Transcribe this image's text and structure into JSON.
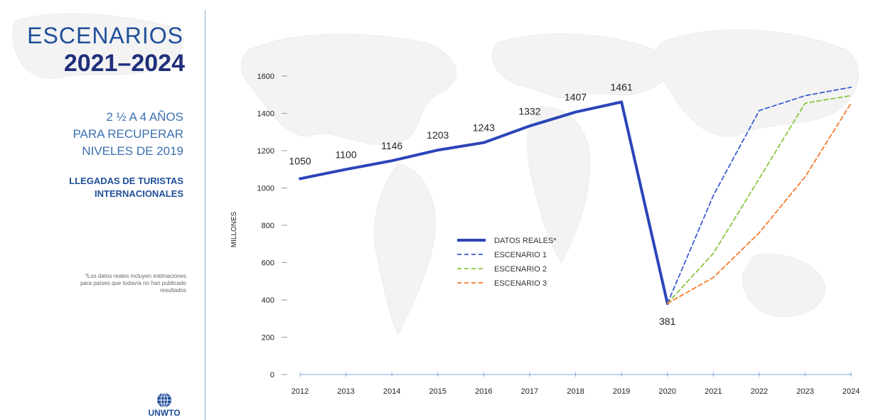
{
  "header": {
    "title_line1": "ESCENARIOS",
    "title_line2": "2021–2024",
    "subtitle_lines": [
      "2 ½ A 4 AÑOS",
      "PARA RECUPERAR",
      "NIVELES DE 2019"
    ],
    "metric_lines": [
      "LLEGADAS DE TURISTAS",
      "INTERNACIONALES"
    ],
    "footnote_lines": [
      "*Los datos reales incluyen estimaciones",
      "para países que todavía no han publicado",
      "resultados"
    ]
  },
  "logo": {
    "text": "UNWTO",
    "icon": "globe-icon"
  },
  "colors": {
    "actual": "#2b45b8",
    "scenario1": "#3b5fd0",
    "scenario2": "#8cc63f",
    "scenario3": "#f47a2c",
    "title": "#1f4f9a"
  },
  "chart_data": {
    "type": "line",
    "ylabel": "MILLONES",
    "ylim": [
      0,
      1600
    ],
    "yticks": [
      0,
      200,
      400,
      600,
      800,
      1000,
      1200,
      1400,
      1600
    ],
    "x": [
      "2012",
      "2013",
      "2014",
      "2015",
      "2016",
      "2017",
      "2018",
      "2019",
      "2020",
      "2021",
      "2022",
      "2023",
      "2024"
    ],
    "series": [
      {
        "name": "DATOS REALES*",
        "style": "solid",
        "x": [
          "2012",
          "2013",
          "2014",
          "2015",
          "2016",
          "2017",
          "2018",
          "2019",
          "2020"
        ],
        "values": [
          1050,
          1100,
          1146,
          1203,
          1243,
          1332,
          1407,
          1461,
          381
        ],
        "labels": [
          "1050",
          "1100",
          "1146",
          "1203",
          "1243",
          "1332",
          "1407",
          "1461",
          "381"
        ]
      },
      {
        "name": "ESCENARIO 1",
        "style": "dashed",
        "x": [
          "2020",
          "2021",
          "2022",
          "2023",
          "2024"
        ],
        "values": [
          381,
          960,
          1415,
          1495,
          1540
        ]
      },
      {
        "name": "ESCENARIO 2",
        "style": "dashed",
        "x": [
          "2020",
          "2021",
          "2022",
          "2023",
          "2024"
        ],
        "values": [
          381,
          650,
          1050,
          1455,
          1495
        ]
      },
      {
        "name": "ESCENARIO 3",
        "style": "dashed",
        "x": [
          "2020",
          "2021",
          "2022",
          "2023",
          "2024"
        ],
        "values": [
          381,
          520,
          760,
          1060,
          1455
        ]
      }
    ],
    "legend_position": "center"
  }
}
